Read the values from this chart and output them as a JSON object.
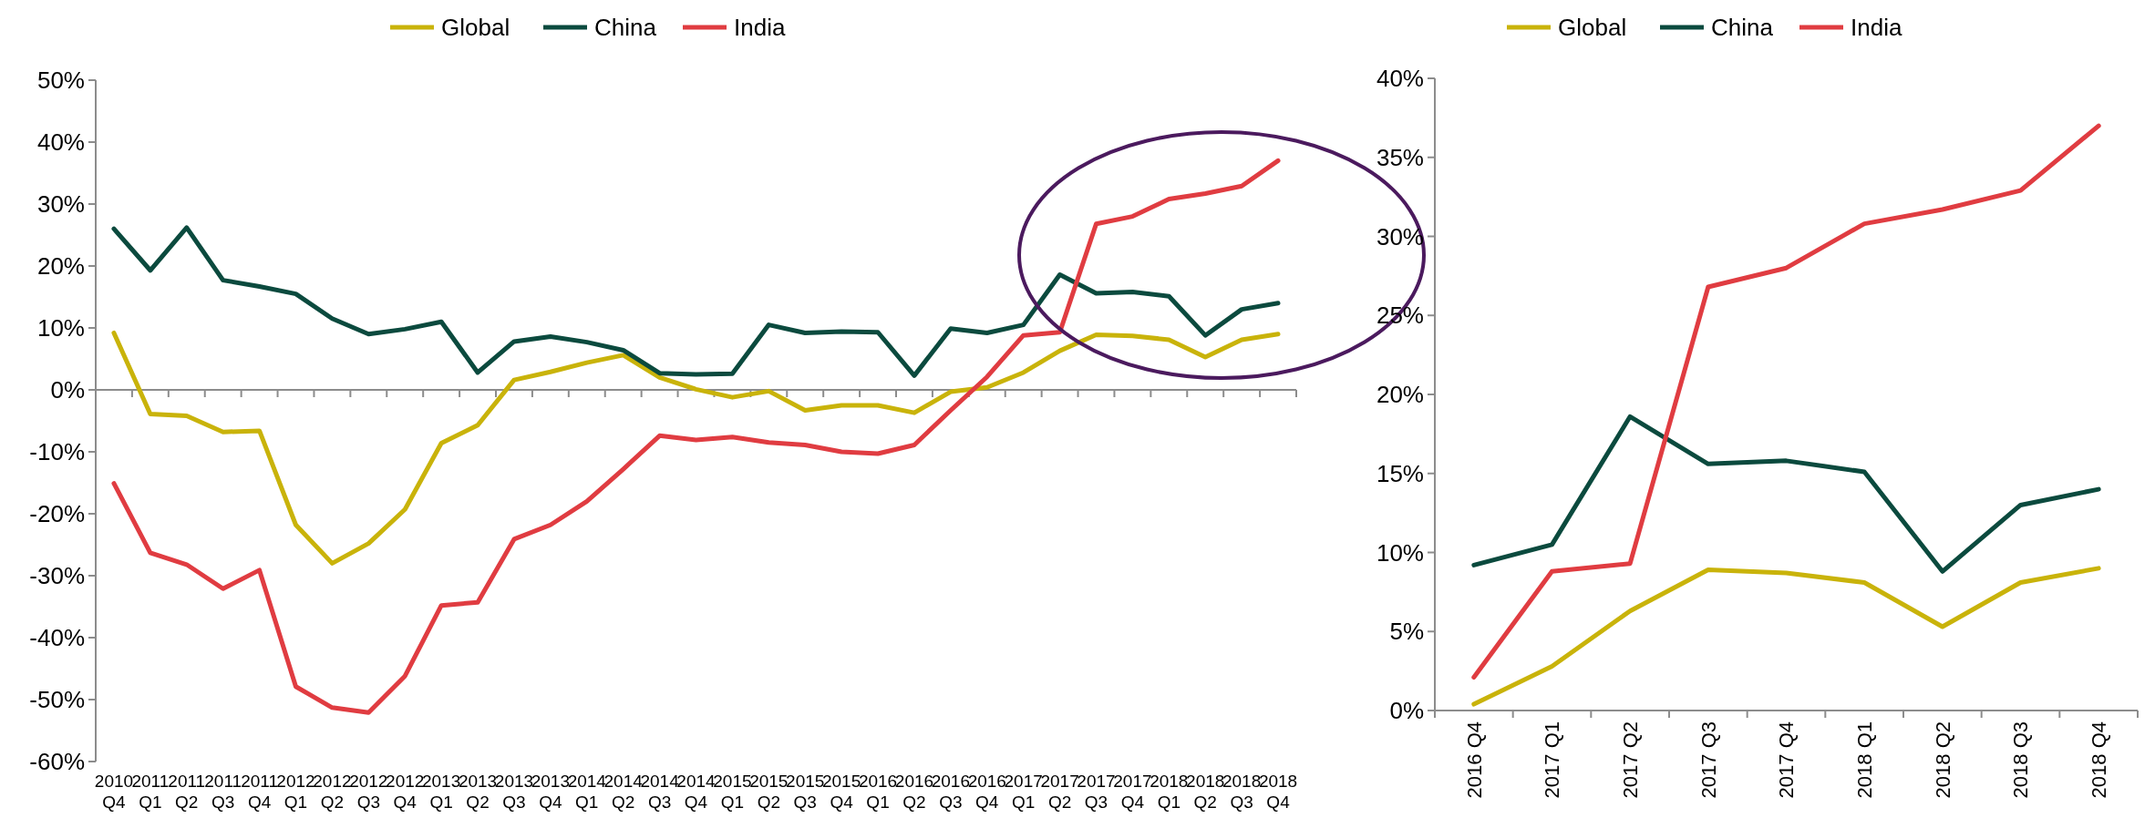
{
  "chart_data": [
    {
      "type": "line",
      "categories": [
        "2010 Q4",
        "2011 Q1",
        "2011 Q2",
        "2011 Q3",
        "2011 Q4",
        "2012 Q1",
        "2012 Q2",
        "2012 Q3",
        "2012 Q4",
        "2013 Q1",
        "2013 Q2",
        "2013 Q3",
        "2013 Q4",
        "2014 Q1",
        "2014 Q2",
        "2014 Q3",
        "2014 Q4",
        "2015 Q1",
        "2015 Q2",
        "2015 Q3",
        "2015 Q4",
        "2016 Q1",
        "2016 Q2",
        "2016 Q3",
        "2016 Q4",
        "2017 Q1",
        "2017 Q2",
        "2017 Q3",
        "2017 Q4",
        "2018 Q1",
        "2018 Q2",
        "2018 Q3",
        "2018 Q4"
      ],
      "series": [
        {
          "name": "Global",
          "color": "#c9b30a",
          "values": [
            9.2,
            -3.9,
            -4.2,
            -6.8,
            -6.6,
            -21.8,
            -28,
            -24.8,
            -19.3,
            -8.6,
            -5.7,
            1.6,
            2.9,
            4.4,
            5.6,
            2,
            0.1,
            -1.2,
            -0.2,
            -3.3,
            -2.5,
            -2.5,
            -3.7,
            -0.3,
            0.4,
            2.8,
            6.3,
            8.9,
            8.7,
            8.1,
            5.3,
            8.1,
            9
          ]
        },
        {
          "name": "China",
          "color": "#0b4a3e",
          "values": [
            26,
            19.3,
            26.2,
            17.7,
            16.7,
            15.5,
            11.5,
            9,
            9.8,
            11,
            2.8,
            7.8,
            8.6,
            7.7,
            6.4,
            2.7,
            2.5,
            2.6,
            10.5,
            9.2,
            9.4,
            9.3,
            2.3,
            9.9,
            9.2,
            10.5,
            18.6,
            15.6,
            15.8,
            15.1,
            8.8,
            13,
            14
          ]
        },
        {
          "name": "India",
          "color": "#e03c41",
          "values": [
            -15.1,
            -26.3,
            -28.2,
            -32.1,
            -29.1,
            -47.9,
            -51.3,
            -52.1,
            -46.2,
            -34.8,
            -34.3,
            -24.1,
            -21.8,
            -18,
            -12.8,
            -7.4,
            -8.1,
            -7.6,
            -8.5,
            -8.9,
            -10,
            -10.3,
            -8.9,
            -3.3,
            2.1,
            8.8,
            9.3,
            26.8,
            28,
            30.8,
            31.7,
            32.9,
            37
          ]
        }
      ],
      "ylim": [
        -60,
        50
      ],
      "yticks": [
        {
          "value": -60,
          "label": "-60%"
        },
        {
          "value": -50,
          "label": "-50%"
        },
        {
          "value": -40,
          "label": "-40%"
        },
        {
          "value": -30,
          "label": "-30%"
        },
        {
          "value": -20,
          "label": "-20%"
        },
        {
          "value": -10,
          "label": "-10%"
        },
        {
          "value": 0,
          "label": "0%"
        },
        {
          "value": 10,
          "label": "10%"
        },
        {
          "value": 20,
          "label": "20%"
        },
        {
          "value": 30,
          "label": "30%"
        },
        {
          "value": 40,
          "label": "40%"
        },
        {
          "value": 50,
          "label": "50%"
        }
      ],
      "legend": "top"
    },
    {
      "type": "line",
      "categories": [
        "2016 Q4",
        "2017 Q1",
        "2017 Q2",
        "2017 Q3",
        "2017 Q4",
        "2018 Q1",
        "2018 Q2",
        "2018 Q3",
        "2018 Q4"
      ],
      "series": [
        {
          "name": "Global",
          "color": "#c9b30a",
          "values": [
            0.4,
            2.8,
            6.3,
            8.9,
            8.7,
            8.1,
            5.3,
            8.1,
            9
          ]
        },
        {
          "name": "China",
          "color": "#0b4a3e",
          "values": [
            9.2,
            10.5,
            18.6,
            15.6,
            15.8,
            15.1,
            8.8,
            13,
            14
          ]
        },
        {
          "name": "India",
          "color": "#e03c41",
          "values": [
            2.1,
            8.8,
            9.3,
            26.8,
            28,
            30.8,
            31.7,
            32.9,
            37
          ]
        }
      ],
      "ylim": [
        0,
        40
      ],
      "yticks": [
        {
          "value": 0,
          "label": "0%"
        },
        {
          "value": 5,
          "label": "5%"
        },
        {
          "value": 10,
          "label": "10%"
        },
        {
          "value": 15,
          "label": "15%"
        },
        {
          "value": 20,
          "label": "20%"
        },
        {
          "value": 25,
          "label": "25%"
        },
        {
          "value": 30,
          "label": "30%"
        },
        {
          "value": 35,
          "label": "35%"
        },
        {
          "value": 40,
          "label": "40%"
        }
      ],
      "legend": "top"
    }
  ]
}
